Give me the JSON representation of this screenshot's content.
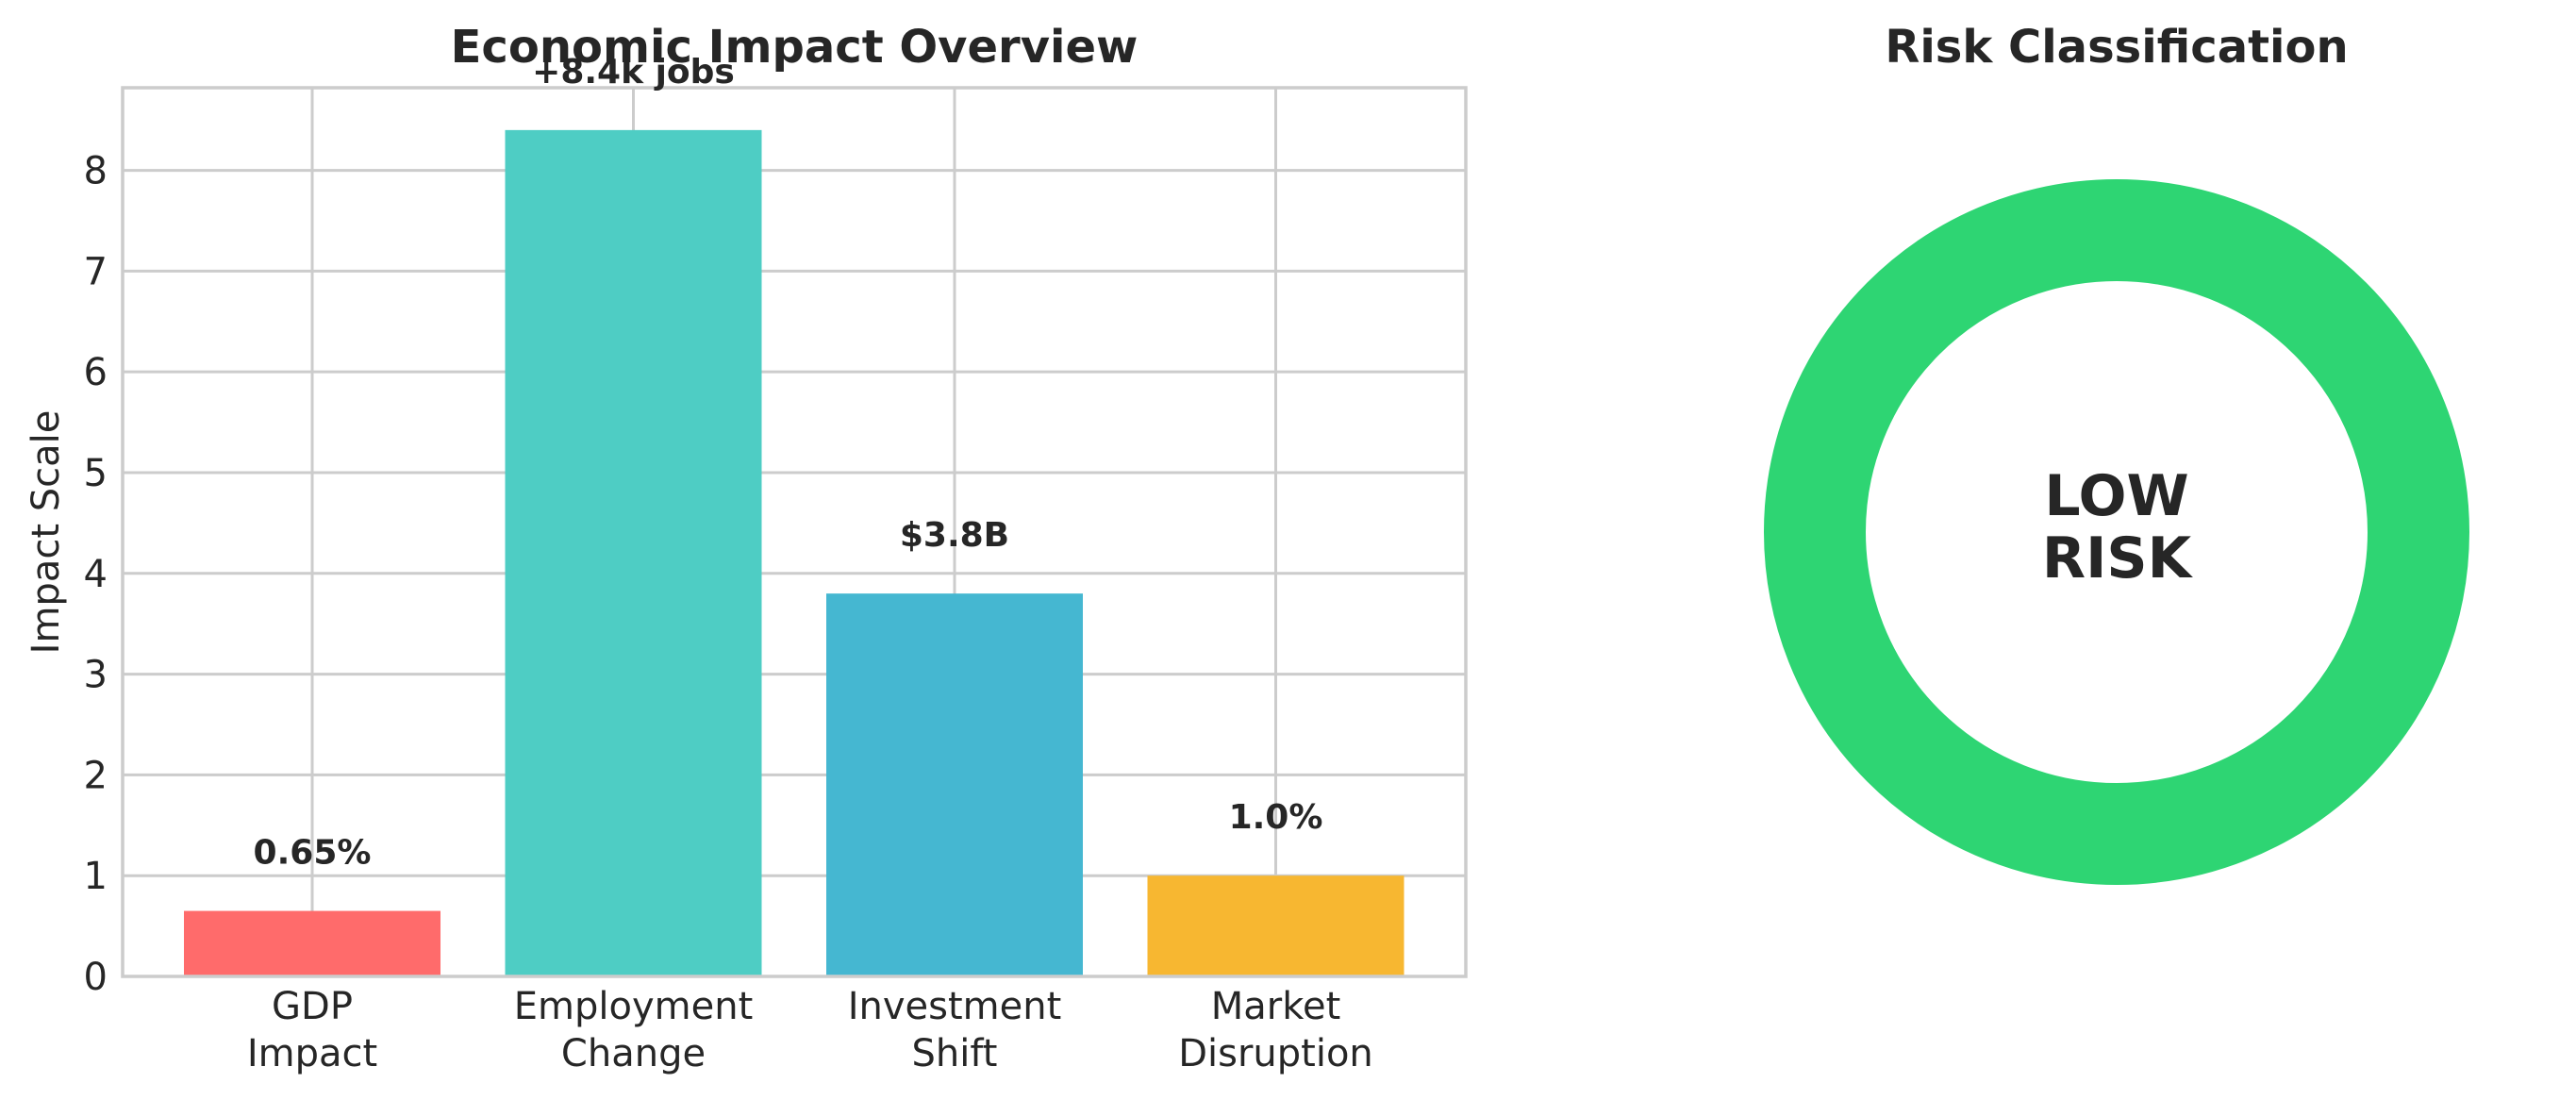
{
  "chart_data": [
    {
      "type": "bar",
      "title": "Economic Impact Overview",
      "xlabel": "",
      "ylabel": "Impact Scale",
      "ylim": [
        0,
        8.82
      ],
      "yticks": [
        "0",
        "1",
        "2",
        "3",
        "4",
        "5",
        "6",
        "7",
        "8"
      ],
      "grid": true,
      "categories": [
        [
          "GDP",
          "Impact"
        ],
        [
          "Employment",
          "Change"
        ],
        [
          "Investment",
          "Shift"
        ],
        [
          "Market",
          "Disruption"
        ]
      ],
      "values": [
        0.65,
        8.4,
        3.8,
        1.0
      ],
      "data_labels": [
        "0.65%",
        "+8.4k jobs",
        "$3.8B",
        "1.0%"
      ],
      "colors": [
        "#ff6b6b",
        "#4ecdc4",
        "#45b7d1",
        "#f7b731"
      ]
    },
    {
      "type": "pie",
      "title": "Risk Classification",
      "center_text": [
        "LOW",
        "RISK"
      ],
      "values": [
        1
      ],
      "colors": [
        "#2ed573"
      ]
    }
  ]
}
